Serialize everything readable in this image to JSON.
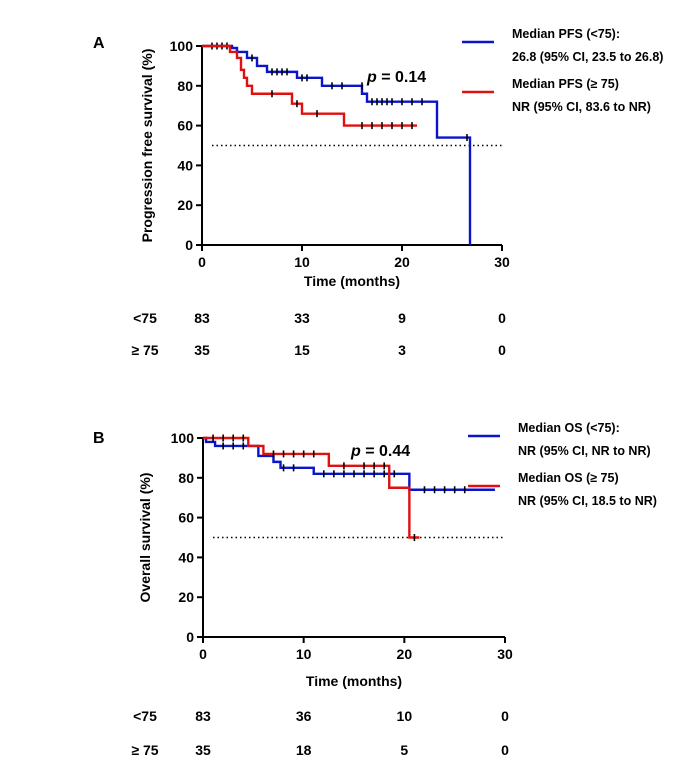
{
  "chart_data": [
    {
      "type": "line",
      "panel": "A",
      "ylabel": "Progression free survival (%)",
      "xlabel": "Time (months)",
      "xlim": [
        0,
        30
      ],
      "ylim": [
        0,
        100
      ],
      "xticks": [
        "0",
        "10",
        "20",
        "30"
      ],
      "yticks": [
        "0",
        "20",
        "40",
        "60",
        "80",
        "100"
      ],
      "reference_line_y": 50,
      "p_value": {
        "italic": "p",
        "rest": " = 0.14",
        "x": 16.5,
        "y": 82
      },
      "legend": [
        {
          "line1": "Median PFS (<75):",
          "line2": "26.8 (95% CI, 23.5 to 26.8)",
          "color": "#0a14c8"
        },
        {
          "line1": "Median PFS (≥ 75)",
          "line2": "NR (95% CI, 83.6 to NR)",
          "color": "#e01010"
        }
      ],
      "series": [
        {
          "name": "<75",
          "color": "#0a14c8",
          "steps": [
            [
              0,
              100
            ],
            [
              3,
              99
            ],
            [
              3.5,
              97
            ],
            [
              4.5,
              94
            ],
            [
              5.5,
              90
            ],
            [
              6.5,
              87
            ],
            [
              9.5,
              84
            ],
            [
              12,
              80
            ],
            [
              16,
              76
            ],
            [
              16.5,
              72
            ],
            [
              23.5,
              54
            ],
            [
              26.8,
              0
            ]
          ],
          "end": 26.8,
          "censors": [
            [
              1,
              100
            ],
            [
              1.5,
              100
            ],
            [
              2,
              100
            ],
            [
              2.5,
              100
            ],
            [
              5,
              94
            ],
            [
              7,
              87
            ],
            [
              7.5,
              87
            ],
            [
              8,
              87
            ],
            [
              8.5,
              87
            ],
            [
              10,
              84
            ],
            [
              10.5,
              84
            ],
            [
              13,
              80
            ],
            [
              14,
              80
            ],
            [
              16,
              80
            ],
            [
              17,
              72
            ],
            [
              17.5,
              72
            ],
            [
              18,
              72
            ],
            [
              18.5,
              72
            ],
            [
              19,
              72
            ],
            [
              20,
              72
            ],
            [
              21,
              72
            ],
            [
              22,
              72
            ],
            [
              26.5,
              54
            ]
          ]
        },
        {
          "name": "≥ 75",
          "color": "#e01010",
          "steps": [
            [
              0,
              100
            ],
            [
              2.8,
              97
            ],
            [
              3.5,
              94
            ],
            [
              3.9,
              88
            ],
            [
              4.2,
              84
            ],
            [
              4.5,
              80
            ],
            [
              5,
              76
            ],
            [
              9,
              71
            ],
            [
              10,
              66
            ],
            [
              14.2,
              60
            ]
          ],
          "end": 21.5,
          "censors": [
            [
              7,
              76
            ],
            [
              9.5,
              71
            ],
            [
              11.5,
              66
            ],
            [
              16,
              60
            ],
            [
              17,
              60
            ],
            [
              18,
              60
            ],
            [
              19,
              60
            ],
            [
              20,
              60
            ],
            [
              21,
              60
            ]
          ]
        }
      ],
      "risk_table": {
        "timepoints": [
          "0",
          "10",
          "20",
          "30"
        ],
        "rows": [
          {
            "label": "<75",
            "values": [
              "83",
              "33",
              "9",
              "0"
            ]
          },
          {
            "label": "≥ 75",
            "values": [
              "35",
              "15",
              "3",
              "0"
            ]
          }
        ]
      }
    },
    {
      "type": "line",
      "panel": "B",
      "ylabel": "Overall survival (%)",
      "xlabel": "Time (months)",
      "xlim": [
        0,
        30
      ],
      "ylim": [
        0,
        100
      ],
      "xticks": [
        "0",
        "10",
        "20",
        "30"
      ],
      "yticks": [
        "0",
        "20",
        "40",
        "60",
        "80",
        "100"
      ],
      "reference_line_y": 50,
      "p_value": {
        "italic": "p",
        "rest": " = 0.44",
        "x": 14.7,
        "y": 91
      },
      "legend": [
        {
          "line1": "Median OS (<75):",
          "line2": "NR (95% CI, NR to NR)",
          "color": "#0a14c8"
        },
        {
          "line1": "Median OS (≥ 75)",
          "line2": "NR (95% CI, 18.5 to NR)",
          "color": "#e01010"
        }
      ],
      "series": [
        {
          "name": "<75",
          "color": "#0a14c8",
          "steps": [
            [
              0,
              100
            ],
            [
              0.3,
              98
            ],
            [
              1.2,
              96
            ],
            [
              5.5,
              91
            ],
            [
              7,
              88
            ],
            [
              7.7,
              85
            ],
            [
              11,
              82
            ],
            [
              20.5,
              74
            ]
          ],
          "end": 29,
          "censors": [
            [
              2,
              96
            ],
            [
              3,
              96
            ],
            [
              4,
              96
            ],
            [
              8,
              85
            ],
            [
              9,
              85
            ],
            [
              12,
              82
            ],
            [
              13,
              82
            ],
            [
              14,
              82
            ],
            [
              15,
              82
            ],
            [
              16,
              82
            ],
            [
              17,
              82
            ],
            [
              18,
              82
            ],
            [
              19,
              82
            ],
            [
              22,
              74
            ],
            [
              23,
              74
            ],
            [
              24,
              74
            ],
            [
              25,
              74
            ],
            [
              26,
              74
            ]
          ]
        },
        {
          "name": "≥ 75",
          "color": "#e01010",
          "steps": [
            [
              0,
              100
            ],
            [
              4.5,
              96
            ],
            [
              6,
              92
            ],
            [
              12.5,
              86
            ],
            [
              18.5,
              75
            ],
            [
              20.5,
              50
            ]
          ],
          "end": 21.5,
          "censors": [
            [
              1,
              100
            ],
            [
              2,
              100
            ],
            [
              3,
              100
            ],
            [
              4,
              100
            ],
            [
              7,
              92
            ],
            [
              8,
              92
            ],
            [
              9,
              92
            ],
            [
              10,
              92
            ],
            [
              11,
              92
            ],
            [
              14,
              86
            ],
            [
              16,
              86
            ],
            [
              17,
              86
            ],
            [
              18,
              86
            ],
            [
              21,
              50
            ]
          ]
        }
      ],
      "risk_table": {
        "timepoints": [
          "0",
          "10",
          "20",
          "30"
        ],
        "rows": [
          {
            "label": "<75",
            "values": [
              "83",
              "36",
              "10",
              "0"
            ]
          },
          {
            "label": "≥ 75",
            "values": [
              "35",
              "18",
              "5",
              "0"
            ]
          }
        ]
      }
    }
  ]
}
